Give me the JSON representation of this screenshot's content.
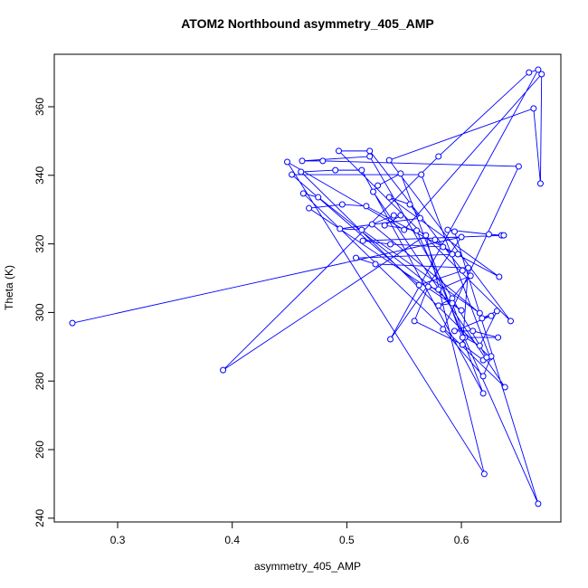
{
  "chart_data": {
    "type": "line",
    "title": "ATOM2 Northbound asymmetry_405_AMP",
    "x_label": "asymmetry_405_AMP",
    "y_label": "Theta (K)",
    "color": "#0000ff",
    "x": [
      0.2605,
      0.6,
      0.538,
      0.667,
      0.659,
      0.58,
      0.392,
      0.569,
      0.62,
      0.448,
      0.55,
      0.67,
      0.669,
      0.663,
      0.537,
      0.643,
      0.493,
      0.52,
      0.601,
      0.563,
      0.452,
      0.565,
      0.625,
      0.46,
      0.49,
      0.513,
      0.619,
      0.547,
      0.527,
      0.523,
      0.638,
      0.462,
      0.475,
      0.6,
      0.467,
      0.496,
      0.517,
      0.633,
      0.537,
      0.555,
      0.564,
      0.494,
      0.513,
      0.616,
      0.522,
      0.541,
      0.547,
      0.533,
      0.561,
      0.667,
      0.594,
      0.588,
      0.624,
      0.635,
      0.637,
      0.514,
      0.538,
      0.584,
      0.577,
      0.592,
      0.597,
      0.508,
      0.525,
      0.606,
      0.601,
      0.559,
      0.571,
      0.58,
      0.608,
      0.592,
      0.58,
      0.592,
      0.603,
      0.616,
      0.631,
      0.618,
      0.626,
      0.594,
      0.61,
      0.632,
      0.601,
      0.601,
      0.619,
      0.626,
      0.619,
      0.584,
      0.65,
      0.479,
      0.461,
      0.52,
      0.622
    ],
    "values": [
      296.9,
      322.0,
      292.2,
      370.8,
      370.0,
      345.5,
      283.2,
      322.5,
      252.9,
      343.9,
      324.1,
      369.5,
      337.6,
      359.5,
      344.4,
      297.5,
      347.1,
      347.1,
      312.2,
      308.0,
      340.2,
      340.2,
      286.9,
      341.0,
      341.5,
      341.5,
      276.4,
      340.5,
      337.0,
      335.2,
      278.2,
      334.7,
      333.6,
      300.6,
      330.4,
      331.5,
      331.0,
      310.4,
      333.6,
      331.5,
      327.5,
      324.4,
      324.1,
      299.8,
      325.7,
      328.3,
      328.3,
      325.4,
      323.9,
      244.2,
      323.6,
      324.1,
      322.8,
      322.5,
      322.5,
      320.9,
      319.9,
      319.1,
      321.2,
      317.0,
      317.0,
      315.9,
      314.1,
      313.0,
      290.6,
      297.5,
      307.5,
      306.7,
      310.7,
      304.1,
      302.0,
      302.7,
      292.7,
      290.3,
      300.4,
      298.3,
      299.0,
      294.6,
      294.6,
      292.7,
      292.7,
      290.6,
      286.1,
      287.2,
      281.4,
      295.1,
      342.6,
      344.2,
      344.2,
      345.5,
      286.9
    ],
    "xlim": [
      0.2447,
      0.6868
    ],
    "ylim": [
      238.9,
      375.3
    ],
    "xticks": [
      0.3,
      0.4,
      0.5,
      0.6
    ],
    "yticks": [
      240,
      260,
      280,
      300,
      320,
      340,
      360
    ]
  }
}
